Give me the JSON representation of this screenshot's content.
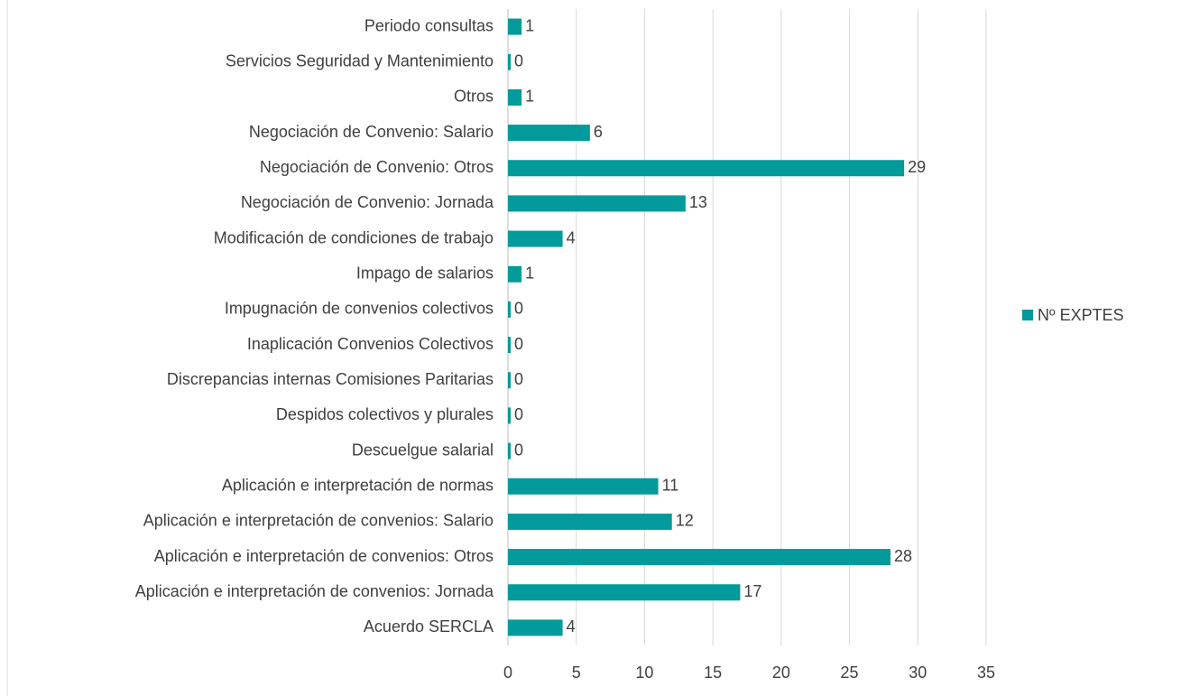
{
  "chart_data": {
    "type": "bar",
    "orientation": "horizontal",
    "categories": [
      "Periodo consultas",
      "Servicios Seguridad y Mantenimiento",
      "Otros",
      "Negociación de Convenio: Salario",
      "Negociación de Convenio: Otros",
      "Negociación de Convenio: Jornada",
      "Modificación de condiciones de trabajo",
      "Impago de salarios",
      "Impugnación de convenios colectivos",
      "Inaplicación Convenios Colectivos",
      "Discrepancias internas Comisiones Paritarias",
      "Despidos colectivos y plurales",
      "Descuelgue salarial",
      "Aplicación e interpretación de normas",
      "Aplicación e interpretación de convenios: Salario",
      "Aplicación e interpretación de convenios: Otros",
      "Aplicación e interpretación de convenios: Jornada",
      "Acuerdo SERCLA"
    ],
    "series": [
      {
        "name": "Nº EXPTES",
        "color": "#029a9a",
        "values": [
          1,
          0,
          1,
          6,
          29,
          13,
          4,
          1,
          0,
          0,
          0,
          0,
          0,
          11,
          12,
          28,
          17,
          4
        ]
      }
    ],
    "xlim": [
      0,
      35
    ],
    "xticks": [
      0,
      5,
      10,
      15,
      20,
      25,
      30,
      35
    ],
    "grid": true,
    "legend": "right"
  }
}
